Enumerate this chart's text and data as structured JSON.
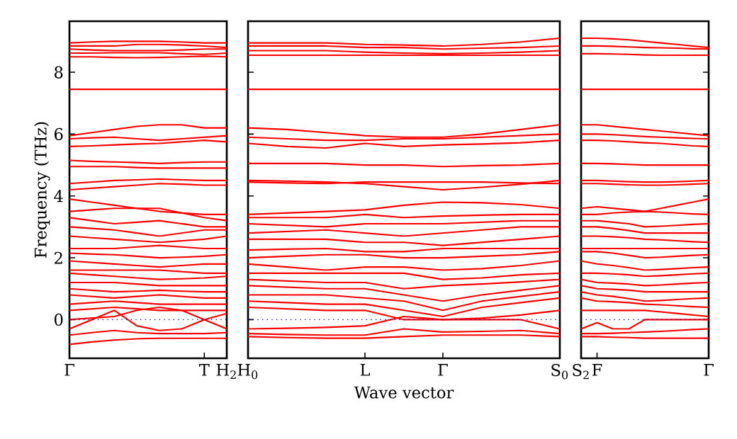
{
  "chart_data": [
    {
      "type": "line",
      "ylabel": "Frequency (THz)",
      "categories": [
        "Γ",
        null,
        null,
        null,
        null,
        null,
        "T",
        "H$_{2}$"
      ],
      "ylim": [
        -1.25,
        9.65
      ],
      "yticks": [
        0,
        2,
        4,
        6,
        8
      ],
      "ref_lines": [
        {
          "axis": "y",
          "value": 0,
          "color": "#0000ff",
          "line_style": "dotted"
        }
      ],
      "series": [
        {
          "color": "#ff0000",
          "values": [
            8.95,
            8.98,
            9.0,
            9.0,
            9.0,
            8.98,
            8.95,
            8.95
          ]
        },
        {
          "color": "#ff0000",
          "values": [
            8.85,
            8.85,
            8.85,
            8.9,
            8.9,
            8.88,
            8.85,
            8.8
          ]
        },
        {
          "color": "#ff0000",
          "values": [
            8.75,
            8.72,
            8.7,
            8.7,
            8.7,
            8.72,
            8.75,
            8.75
          ]
        },
        {
          "color": "#ff0000",
          "values": [
            8.62,
            8.62,
            8.63,
            8.63,
            8.63,
            8.6,
            8.58,
            8.62
          ]
        },
        {
          "color": "#ff0000",
          "values": [
            8.5,
            8.5,
            8.48,
            8.47,
            8.48,
            8.5,
            8.52,
            8.5
          ]
        },
        {
          "color": "#ff0000",
          "values": [
            7.45,
            7.45,
            7.45,
            7.45,
            7.45,
            7.45,
            7.45,
            7.45
          ]
        },
        {
          "color": "#ff0000",
          "values": [
            5.95,
            6.05,
            6.15,
            6.25,
            6.3,
            6.3,
            6.2,
            6.2
          ]
        },
        {
          "color": "#ff0000",
          "values": [
            5.85,
            5.88,
            5.9,
            5.85,
            5.8,
            5.85,
            5.9,
            5.95
          ]
        },
        {
          "color": "#ff0000",
          "values": [
            5.6,
            5.62,
            5.65,
            5.68,
            5.7,
            5.75,
            5.8,
            5.75
          ]
        },
        {
          "color": "#ff0000",
          "values": [
            5.15,
            5.12,
            5.1,
            5.08,
            5.05,
            5.08,
            5.1,
            5.1
          ]
        },
        {
          "color": "#ff0000",
          "values": [
            4.95,
            4.95,
            4.95,
            4.92,
            4.9,
            4.9,
            4.9,
            4.9
          ]
        },
        {
          "color": "#ff0000",
          "values": [
            4.4,
            4.45,
            4.5,
            4.52,
            4.55,
            4.52,
            4.5,
            4.5
          ]
        },
        {
          "color": "#ff0000",
          "values": [
            4.2,
            4.25,
            4.3,
            4.35,
            4.4,
            4.38,
            4.35,
            4.35
          ]
        },
        {
          "color": "#ff0000",
          "values": [
            3.9,
            3.8,
            3.7,
            3.6,
            3.5,
            3.45,
            3.4,
            3.4
          ]
        },
        {
          "color": "#ff0000",
          "values": [
            3.5,
            3.55,
            3.6,
            3.6,
            3.6,
            3.45,
            3.3,
            3.2
          ]
        },
        {
          "color": "#ff0000",
          "values": [
            3.3,
            3.2,
            3.1,
            3.15,
            3.2,
            3.1,
            3.0,
            3.0
          ]
        },
        {
          "color": "#ff0000",
          "values": [
            3.0,
            2.95,
            2.9,
            2.8,
            2.7,
            2.8,
            2.9,
            2.9
          ]
        },
        {
          "color": "#ff0000",
          "values": [
            2.7,
            2.65,
            2.6,
            2.55,
            2.5,
            2.55,
            2.6,
            2.7
          ]
        },
        {
          "color": "#ff0000",
          "values": [
            2.3,
            2.3,
            2.3,
            2.35,
            2.4,
            2.35,
            2.3,
            2.3
          ]
        },
        {
          "color": "#ff0000",
          "values": [
            2.15,
            2.12,
            2.1,
            2.05,
            2.0,
            2.02,
            2.05,
            2.1
          ]
        },
        {
          "color": "#ff0000",
          "values": [
            1.9,
            1.85,
            1.8,
            1.75,
            1.7,
            1.75,
            1.8,
            1.8
          ]
        },
        {
          "color": "#ff0000",
          "values": [
            1.6,
            1.6,
            1.6,
            1.6,
            1.6,
            1.55,
            1.5,
            1.5
          ]
        },
        {
          "color": "#ff0000",
          "values": [
            1.5,
            1.45,
            1.4,
            1.35,
            1.3,
            1.32,
            1.35,
            1.4
          ]
        },
        {
          "color": "#ff0000",
          "values": [
            1.2,
            1.2,
            1.2,
            1.15,
            1.1,
            1.1,
            1.1,
            1.1
          ]
        },
        {
          "color": "#ff0000",
          "values": [
            1.0,
            0.95,
            0.9,
            0.92,
            0.95,
            0.92,
            0.9,
            0.9
          ]
        },
        {
          "color": "#ff0000",
          "values": [
            0.8,
            0.75,
            0.7,
            0.75,
            0.8,
            0.75,
            0.7,
            0.7
          ]
        },
        {
          "color": "#ff0000",
          "values": [
            0.5,
            0.55,
            0.6,
            0.55,
            0.5,
            0.5,
            0.5,
            0.5
          ]
        },
        {
          "color": "#ff0000",
          "values": [
            0.3,
            0.35,
            0.4,
            0.35,
            0.3,
            0.3,
            0.3,
            0.3
          ]
        },
        {
          "color": "#ff0000",
          "values": [
            0.0,
            0.05,
            0.1,
            0.3,
            0.4,
            0.3,
            0.0,
            0.2
          ]
        },
        {
          "color": "#ff0000",
          "values": [
            -0.3,
            0.0,
            0.3,
            -0.2,
            -0.35,
            -0.3,
            0.0,
            -0.3
          ]
        },
        {
          "color": "#ff0000",
          "values": [
            -0.5,
            -0.42,
            -0.35,
            -0.42,
            -0.45,
            -0.45,
            -0.45,
            -0.42
          ]
        },
        {
          "color": "#ff0000",
          "values": [
            -0.8,
            -0.72,
            -0.66,
            -0.62,
            -0.6,
            -0.6,
            -0.6,
            -0.6
          ]
        }
      ]
    },
    {
      "type": "line",
      "xlabel": "Wave vector",
      "tick_labels": "x",
      "categories": [
        "H$_{0}$",
        null,
        null,
        "L",
        null,
        "Γ",
        null,
        null,
        "S$_{0}$"
      ],
      "ylim": [
        -1.25,
        9.65
      ],
      "yticks": [
        0,
        2,
        4,
        6,
        8
      ],
      "ref_lines": [
        {
          "axis": "y",
          "value": 0,
          "color": "#0000ff",
          "line_style": "dotted"
        }
      ],
      "series": [
        {
          "color": "#ff0000",
          "values": [
            8.95,
            8.95,
            8.95,
            8.9,
            8.88,
            8.85,
            8.9,
            8.98,
            9.1
          ]
        },
        {
          "color": "#ff0000",
          "values": [
            8.85,
            8.85,
            8.85,
            8.8,
            8.8,
            8.75,
            8.78,
            8.8,
            8.85
          ]
        },
        {
          "color": "#ff0000",
          "values": [
            8.7,
            8.7,
            8.7,
            8.65,
            8.62,
            8.6,
            8.62,
            8.65,
            8.7
          ]
        },
        {
          "color": "#ff0000",
          "values": [
            8.55,
            8.55,
            8.55,
            8.55,
            8.55,
            8.55,
            8.55,
            8.55,
            8.55
          ]
        },
        {
          "color": "#ff0000",
          "values": [
            7.45,
            7.45,
            7.45,
            7.45,
            7.45,
            7.45,
            7.45,
            7.45,
            7.45
          ]
        },
        {
          "color": "#ff0000",
          "values": [
            6.2,
            6.15,
            6.05,
            5.95,
            5.9,
            5.9,
            6.0,
            6.15,
            6.3
          ]
        },
        {
          "color": "#ff0000",
          "values": [
            5.9,
            5.85,
            5.8,
            5.8,
            5.85,
            5.85,
            5.9,
            5.95,
            6.0
          ]
        },
        {
          "color": "#ff0000",
          "values": [
            5.7,
            5.6,
            5.55,
            5.7,
            5.6,
            5.65,
            5.68,
            5.72,
            5.8
          ]
        },
        {
          "color": "#ff0000",
          "values": [
            5.05,
            5.05,
            5.05,
            5.0,
            5.0,
            4.95,
            4.98,
            5.0,
            5.05
          ]
        },
        {
          "color": "#ff0000",
          "values": [
            4.5,
            4.48,
            4.45,
            4.4,
            4.3,
            4.2,
            4.28,
            4.38,
            4.5
          ]
        },
        {
          "color": "#ff0000",
          "values": [
            4.45,
            4.42,
            4.4,
            4.45,
            4.45,
            4.45,
            4.45,
            4.42,
            4.4
          ]
        },
        {
          "color": "#ff0000",
          "values": [
            3.4,
            3.45,
            3.5,
            3.55,
            3.7,
            3.8,
            3.78,
            3.72,
            3.6
          ]
        },
        {
          "color": "#ff0000",
          "values": [
            3.3,
            3.3,
            3.3,
            3.4,
            3.3,
            3.35,
            3.38,
            3.4,
            3.4
          ]
        },
        {
          "color": "#ff0000",
          "values": [
            3.1,
            3.05,
            3.0,
            3.1,
            3.1,
            3.1,
            3.15,
            3.2,
            3.2
          ]
        },
        {
          "color": "#ff0000",
          "values": [
            2.8,
            2.85,
            2.9,
            2.8,
            2.7,
            2.8,
            2.9,
            3.0,
            3.0
          ]
        },
        {
          "color": "#ff0000",
          "values": [
            2.6,
            2.6,
            2.6,
            2.5,
            2.5,
            2.4,
            2.5,
            2.6,
            2.7
          ]
        },
        {
          "color": "#ff0000",
          "values": [
            2.25,
            2.28,
            2.3,
            2.2,
            2.2,
            2.3,
            2.3,
            2.3,
            2.3
          ]
        },
        {
          "color": "#ff0000",
          "values": [
            2.0,
            2.05,
            2.1,
            2.1,
            2.0,
            2.0,
            2.05,
            2.1,
            2.2
          ]
        },
        {
          "color": "#ff0000",
          "values": [
            1.8,
            1.7,
            1.6,
            1.7,
            1.7,
            1.6,
            1.65,
            1.75,
            1.9
          ]
        },
        {
          "color": "#ff0000",
          "values": [
            1.5,
            1.5,
            1.5,
            1.5,
            1.5,
            1.3,
            1.35,
            1.45,
            1.5
          ]
        },
        {
          "color": "#ff0000",
          "values": [
            1.3,
            1.25,
            1.2,
            1.2,
            1.0,
            1.1,
            1.15,
            1.22,
            1.3
          ]
        },
        {
          "color": "#ff0000",
          "values": [
            1.1,
            1.05,
            1.0,
            1.0,
            0.8,
            0.6,
            0.8,
            0.95,
            1.1
          ]
        },
        {
          "color": "#ff0000",
          "values": [
            0.8,
            0.8,
            0.8,
            0.7,
            0.6,
            0.3,
            0.6,
            0.75,
            0.9
          ]
        },
        {
          "color": "#ff0000",
          "values": [
            0.6,
            0.55,
            0.5,
            0.5,
            0.3,
            0.1,
            0.4,
            0.55,
            0.7
          ]
        },
        {
          "color": "#ff0000",
          "values": [
            0.4,
            0.35,
            0.3,
            0.3,
            0.0,
            0.0,
            0.05,
            0.15,
            0.3
          ]
        },
        {
          "color": "#ff0000",
          "values": [
            -0.3,
            -0.28,
            -0.25,
            -0.2,
            0.1,
            0.0,
            0.0,
            0.0,
            -0.3
          ]
        },
        {
          "color": "#ff0000",
          "values": [
            -0.45,
            -0.48,
            -0.5,
            -0.5,
            -0.3,
            -0.4,
            -0.38,
            -0.35,
            -0.45
          ]
        },
        {
          "color": "#ff0000",
          "values": [
            -0.55,
            -0.58,
            -0.6,
            -0.6,
            -0.55,
            -0.5,
            -0.5,
            -0.5,
            -0.55
          ]
        }
      ]
    },
    {
      "type": "line",
      "tick_labels": "x",
      "categories": [
        "S$_{2}$",
        "F",
        null,
        null,
        null,
        null,
        null,
        null,
        "Γ"
      ],
      "ylim": [
        -1.25,
        9.65
      ],
      "yticks": [
        0,
        2,
        4,
        6,
        8
      ],
      "ref_lines": [
        {
          "axis": "y",
          "value": 0,
          "color": "#0000ff",
          "line_style": "dotted"
        }
      ],
      "series": [
        {
          "color": "#ff0000",
          "values": [
            9.1,
            9.1,
            9.08,
            9.05,
            9.0,
            8.95,
            8.9,
            8.85,
            8.8
          ]
        },
        {
          "color": "#ff0000",
          "values": [
            8.85,
            8.85,
            8.84,
            8.82,
            8.8,
            8.79,
            8.78,
            8.76,
            8.75
          ]
        },
        {
          "color": "#ff0000",
          "values": [
            8.6,
            8.6,
            8.59,
            8.58,
            8.56,
            8.55,
            8.55,
            8.55,
            8.55
          ]
        },
        {
          "color": "#ff0000",
          "values": [
            7.45,
            7.45,
            7.45,
            7.45,
            7.45,
            7.45,
            7.45,
            7.45,
            7.45
          ]
        },
        {
          "color": "#ff0000",
          "values": [
            6.3,
            6.3,
            6.25,
            6.2,
            6.15,
            6.1,
            6.05,
            6.0,
            5.95
          ]
        },
        {
          "color": "#ff0000",
          "values": [
            6.0,
            6.0,
            5.98,
            5.95,
            5.92,
            5.9,
            5.88,
            5.86,
            5.85
          ]
        },
        {
          "color": "#ff0000",
          "values": [
            5.8,
            5.8,
            5.78,
            5.75,
            5.72,
            5.7,
            5.66,
            5.62,
            5.6
          ]
        },
        {
          "color": "#ff0000",
          "values": [
            5.05,
            5.05,
            5.04,
            5.02,
            5.0,
            5.0,
            5.0,
            5.0,
            5.0
          ]
        },
        {
          "color": "#ff0000",
          "values": [
            4.5,
            4.5,
            4.48,
            4.46,
            4.45,
            4.45,
            4.46,
            4.48,
            4.5
          ]
        },
        {
          "color": "#ff0000",
          "values": [
            4.4,
            4.4,
            4.38,
            4.36,
            4.35,
            4.35,
            4.36,
            4.38,
            4.4
          ]
        },
        {
          "color": "#ff0000",
          "values": [
            3.6,
            3.65,
            3.6,
            3.55,
            3.5,
            3.6,
            3.7,
            3.8,
            3.9
          ]
        },
        {
          "color": "#ff0000",
          "values": [
            3.4,
            3.4,
            3.45,
            3.48,
            3.5,
            3.48,
            3.45,
            3.42,
            3.4
          ]
        },
        {
          "color": "#ff0000",
          "values": [
            3.2,
            3.2,
            3.15,
            3.1,
            3.0,
            3.02,
            3.05,
            3.08,
            3.1
          ]
        },
        {
          "color": "#ff0000",
          "values": [
            3.0,
            3.0,
            2.95,
            2.88,
            2.8,
            2.8,
            2.8,
            2.8,
            2.8
          ]
        },
        {
          "color": "#ff0000",
          "values": [
            2.7,
            2.7,
            2.68,
            2.65,
            2.6,
            2.58,
            2.55,
            2.52,
            2.5
          ]
        },
        {
          "color": "#ff0000",
          "values": [
            2.3,
            2.3,
            2.3,
            2.3,
            2.3,
            2.3,
            2.3,
            2.3,
            2.3
          ]
        },
        {
          "color": "#ff0000",
          "values": [
            2.2,
            2.2,
            2.15,
            2.08,
            2.0,
            2.02,
            2.05,
            2.08,
            2.1
          ]
        },
        {
          "color": "#ff0000",
          "values": [
            1.9,
            1.8,
            1.75,
            1.68,
            1.6,
            1.62,
            1.65,
            1.68,
            1.7
          ]
        },
        {
          "color": "#ff0000",
          "values": [
            1.5,
            1.5,
            1.48,
            1.45,
            1.4,
            1.42,
            1.45,
            1.48,
            1.5
          ]
        },
        {
          "color": "#ff0000",
          "values": [
            1.3,
            1.2,
            1.18,
            1.15,
            1.1,
            1.12,
            1.15,
            1.18,
            1.2
          ]
        },
        {
          "color": "#ff0000",
          "values": [
            1.1,
            1.0,
            0.98,
            0.95,
            0.9,
            0.9,
            0.9,
            0.9,
            0.9
          ]
        },
        {
          "color": "#ff0000",
          "values": [
            0.9,
            0.8,
            0.75,
            0.68,
            0.6,
            0.62,
            0.65,
            0.68,
            0.7
          ]
        },
        {
          "color": "#ff0000",
          "values": [
            0.7,
            0.6,
            0.58,
            0.55,
            0.5,
            0.48,
            0.45,
            0.42,
            0.4
          ]
        },
        {
          "color": "#ff0000",
          "values": [
            0.3,
            0.3,
            0.3,
            0.3,
            0.3,
            0.25,
            0.2,
            0.15,
            0.1
          ]
        },
        {
          "color": "#ff0000",
          "values": [
            -0.3,
            -0.1,
            -0.3,
            -0.3,
            0.0,
            0.0,
            0.0,
            0.0,
            0.0
          ]
        },
        {
          "color": "#ff0000",
          "values": [
            -0.45,
            -0.45,
            -0.44,
            -0.42,
            -0.4,
            -0.38,
            -0.35,
            -0.32,
            -0.3
          ]
        },
        {
          "color": "#ff0000",
          "values": [
            -0.55,
            -0.55,
            -0.57,
            -0.58,
            -0.6,
            -0.6,
            -0.6,
            -0.6,
            -0.6
          ]
        }
      ]
    }
  ]
}
